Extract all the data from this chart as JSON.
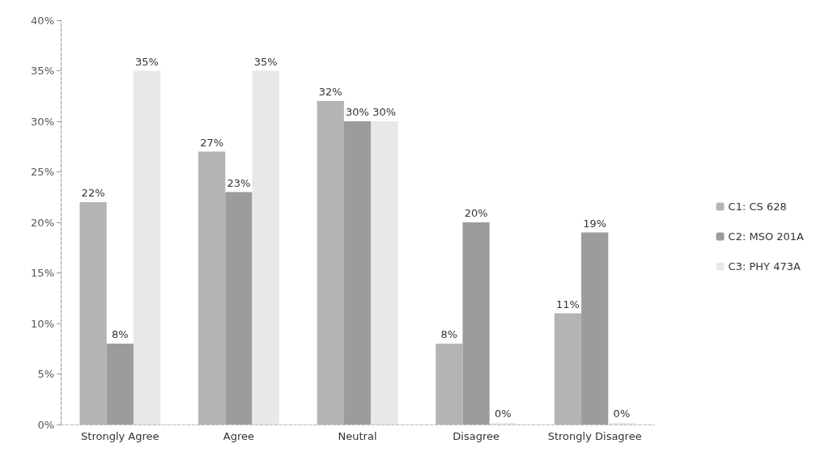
{
  "chart_data": {
    "type": "bar",
    "categories": [
      "Strongly Agree",
      "Agree",
      "Neutral",
      "Disagree",
      "Strongly Disagree"
    ],
    "series": [
      {
        "name": "C1: CS 628",
        "color": "#b4b4b4",
        "values": [
          22,
          27,
          32,
          8,
          11
        ],
        "value_labels": [
          "22%",
          "27%",
          "32%",
          "8%",
          "11%"
        ]
      },
      {
        "name": "C2: MSO 201A",
        "color": "#9c9c9c",
        "values": [
          8,
          23,
          30,
          20,
          19
        ],
        "value_labels": [
          "8%",
          "23%",
          "30%",
          "20%",
          "19%"
        ]
      },
      {
        "name": "C3: PHY 473A",
        "color": "#e8e8e8",
        "values": [
          35,
          35,
          30,
          0,
          0
        ],
        "value_labels": [
          "35%",
          "35%",
          "30%",
          "0%",
          "0%"
        ]
      }
    ],
    "ylim": [
      0,
      40
    ],
    "yticks": [
      {
        "value": 0,
        "label": "0%"
      },
      {
        "value": 5,
        "label": "5%"
      },
      {
        "value": 10,
        "label": "10%"
      },
      {
        "value": 15,
        "label": "15%"
      },
      {
        "value": 20,
        "label": "20%"
      },
      {
        "value": 25,
        "label": "25%"
      },
      {
        "value": 30,
        "label": "30%"
      },
      {
        "value": 35,
        "label": "35%"
      },
      {
        "value": 40,
        "label": "40%"
      }
    ],
    "grid": false,
    "legend": "right"
  }
}
